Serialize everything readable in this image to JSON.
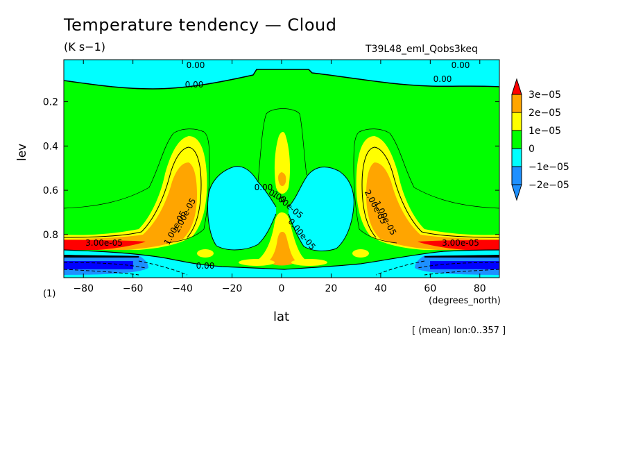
{
  "chart_data": {
    "type": "heatmap",
    "title": "Temperature tendency — Cloud",
    "units": "(K s−1)",
    "run_name": "T39L48_eml_Qobs3keq",
    "xlabel": "lat",
    "x_units": "(degrees_north)",
    "ylabel": "lev",
    "y_units": "(1)",
    "footer": "[ (mean) lon:0..357 ]",
    "xlim": [
      -87.9,
      87.9
    ],
    "ylim": [
      0.995,
      0.01
    ],
    "y_inverted": true,
    "x_ticks": [
      -80,
      -60,
      -40,
      -20,
      0,
      20,
      40,
      60,
      80
    ],
    "x_tick_labels": [
      "−80",
      "−60",
      "−40",
      "−20",
      "0",
      "20",
      "40",
      "60",
      "80"
    ],
    "y_ticks": [
      0.2,
      0.4,
      0.6,
      0.8
    ],
    "y_tick_labels": [
      "0.2",
      "0.4",
      "0.6",
      "0.8"
    ],
    "levels": [
      -3e-05,
      -2e-05,
      -1e-05,
      0,
      1e-05,
      2e-05,
      3e-05
    ],
    "colorbar_labels": [
      "3e−05",
      "2e−05",
      "1e−05",
      "0",
      "−1e−05",
      "−2e−05"
    ],
    "colors": {
      "lt_m2e5": "#1e90ff",
      "m2e5_m1e5": "#1e90ff",
      "m1e5_0": "#00ffff",
      "0_1e5": "#00ff00",
      "1e5_2e5": "#ffff00",
      "2e5_3e5": "#ffa500",
      "gt_3e5": "#ff0000",
      "dark_blue": "#0000ff"
    },
    "contour_labels": [
      "0.00",
      "0.00",
      "0.00",
      "0.00",
      "0.00",
      "2.00e-05",
      "1.00e-05",
      "2.00e-05",
      "1.00e-05",
      "3.00e-05",
      "3.00e-05",
      "0.00",
      "0.00e-05",
      "1.00e-05",
      "0.00"
    ]
  }
}
